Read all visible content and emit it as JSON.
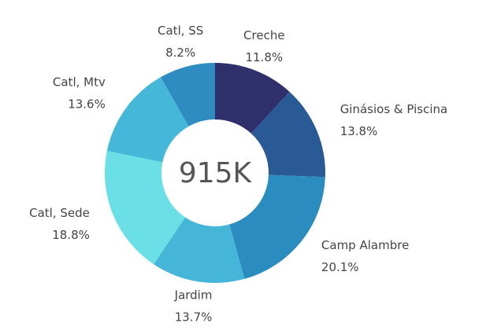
{
  "chart_data": {
    "type": "donut",
    "center_label": "915K",
    "categories": [
      "Creche",
      "Ginásios & Piscina",
      "Camp Alambre",
      "Jardim",
      "Catl, Sede",
      "Catl, Mtv",
      "Catl, SS"
    ],
    "values": [
      11.8,
      13.8,
      20.1,
      13.7,
      18.8,
      13.6,
      8.2
    ],
    "value_labels": [
      "11.8%",
      "13.8%",
      "20.1%",
      "13.7%",
      "18.8%",
      "13.6%",
      "8.2%"
    ],
    "colors": [
      "#2e2f6b",
      "#2a5a96",
      "#2b8cc0",
      "#45b5d8",
      "#6ae0e6",
      "#45b8da",
      "#2e8cc0"
    ]
  }
}
